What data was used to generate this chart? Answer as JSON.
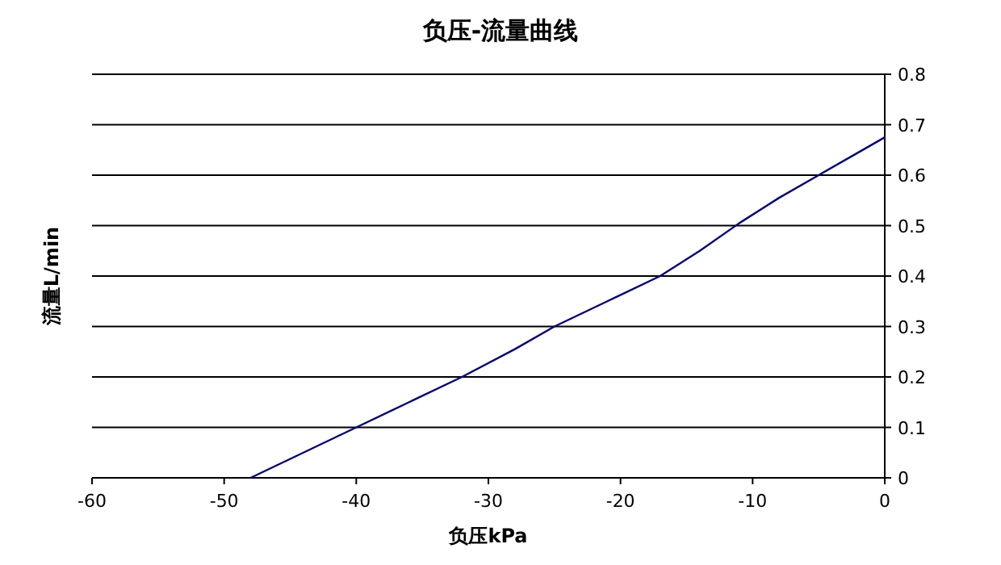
{
  "chart_data": {
    "type": "line",
    "title": "负压-流量曲线",
    "xlabel": "负压kPa",
    "ylabel": "流量L/min",
    "x": [
      -48,
      -44,
      -40,
      -36,
      -32,
      -28,
      -25,
      -21,
      -17,
      -14,
      -11,
      -8,
      -5,
      -2,
      0
    ],
    "series": [
      {
        "color": "#000080",
        "values": [
          0,
          0.05,
          0.1,
          0.15,
          0.2,
          0.255,
          0.3,
          0.35,
          0.4,
          0.45,
          0.505,
          0.555,
          0.6,
          0.645,
          0.675
        ]
      }
    ],
    "xlim": [
      -60,
      0
    ],
    "ylim": [
      0,
      0.8
    ],
    "xticks": [
      -60,
      -50,
      -40,
      -30,
      -20,
      -10,
      0
    ],
    "yticks": [
      0,
      0.1,
      0.2,
      0.3,
      0.4,
      0.5,
      0.6,
      0.7,
      0.8
    ],
    "grid": "y",
    "marker": "none",
    "line_style": "solid"
  }
}
